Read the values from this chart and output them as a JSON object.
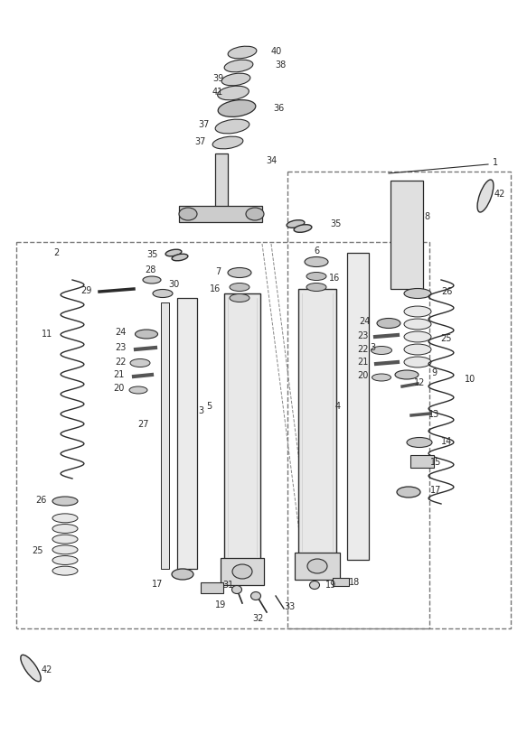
{
  "bg_color": "#ffffff",
  "lc": "#2a2a2a",
  "fs": 7.0,
  "fig_w": 5.83,
  "fig_h": 8.24,
  "dpi": 100
}
